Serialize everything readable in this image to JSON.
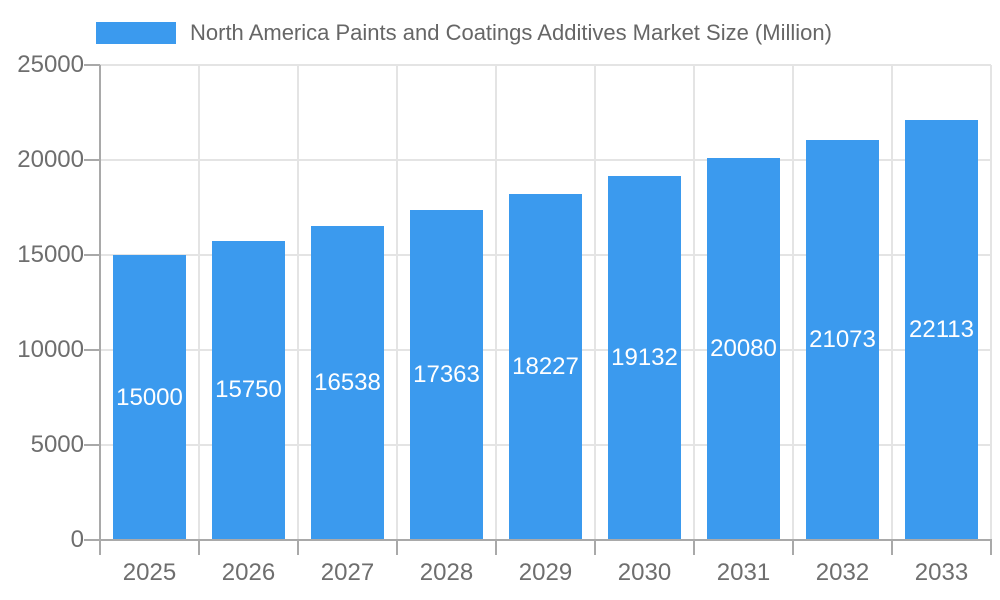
{
  "chart_data": {
    "type": "bar",
    "title": "North America Paints and Coatings Additives Market Size (Million)",
    "categories": [
      "2025",
      "2026",
      "2027",
      "2028",
      "2029",
      "2030",
      "2031",
      "2032",
      "2033"
    ],
    "values": [
      15000,
      15750,
      16538,
      17363,
      18227,
      19132,
      20080,
      21073,
      22113
    ],
    "xlabel": "",
    "ylabel": "",
    "ylim": [
      0,
      25000
    ],
    "yticks": [
      0,
      5000,
      10000,
      15000,
      20000,
      25000
    ],
    "grid": true,
    "legend_position": "top",
    "bar_color": "#3b9aee",
    "value_label_color": "#ffffff"
  },
  "colors": {
    "accent": "#3b9aee",
    "gridline": "#e4e4e4",
    "axis": "#a9a9a9",
    "tick_text": "#6e6e6e",
    "legend_text": "#666666",
    "background": "#ffffff",
    "bar_value_text": "#ffffff"
  }
}
